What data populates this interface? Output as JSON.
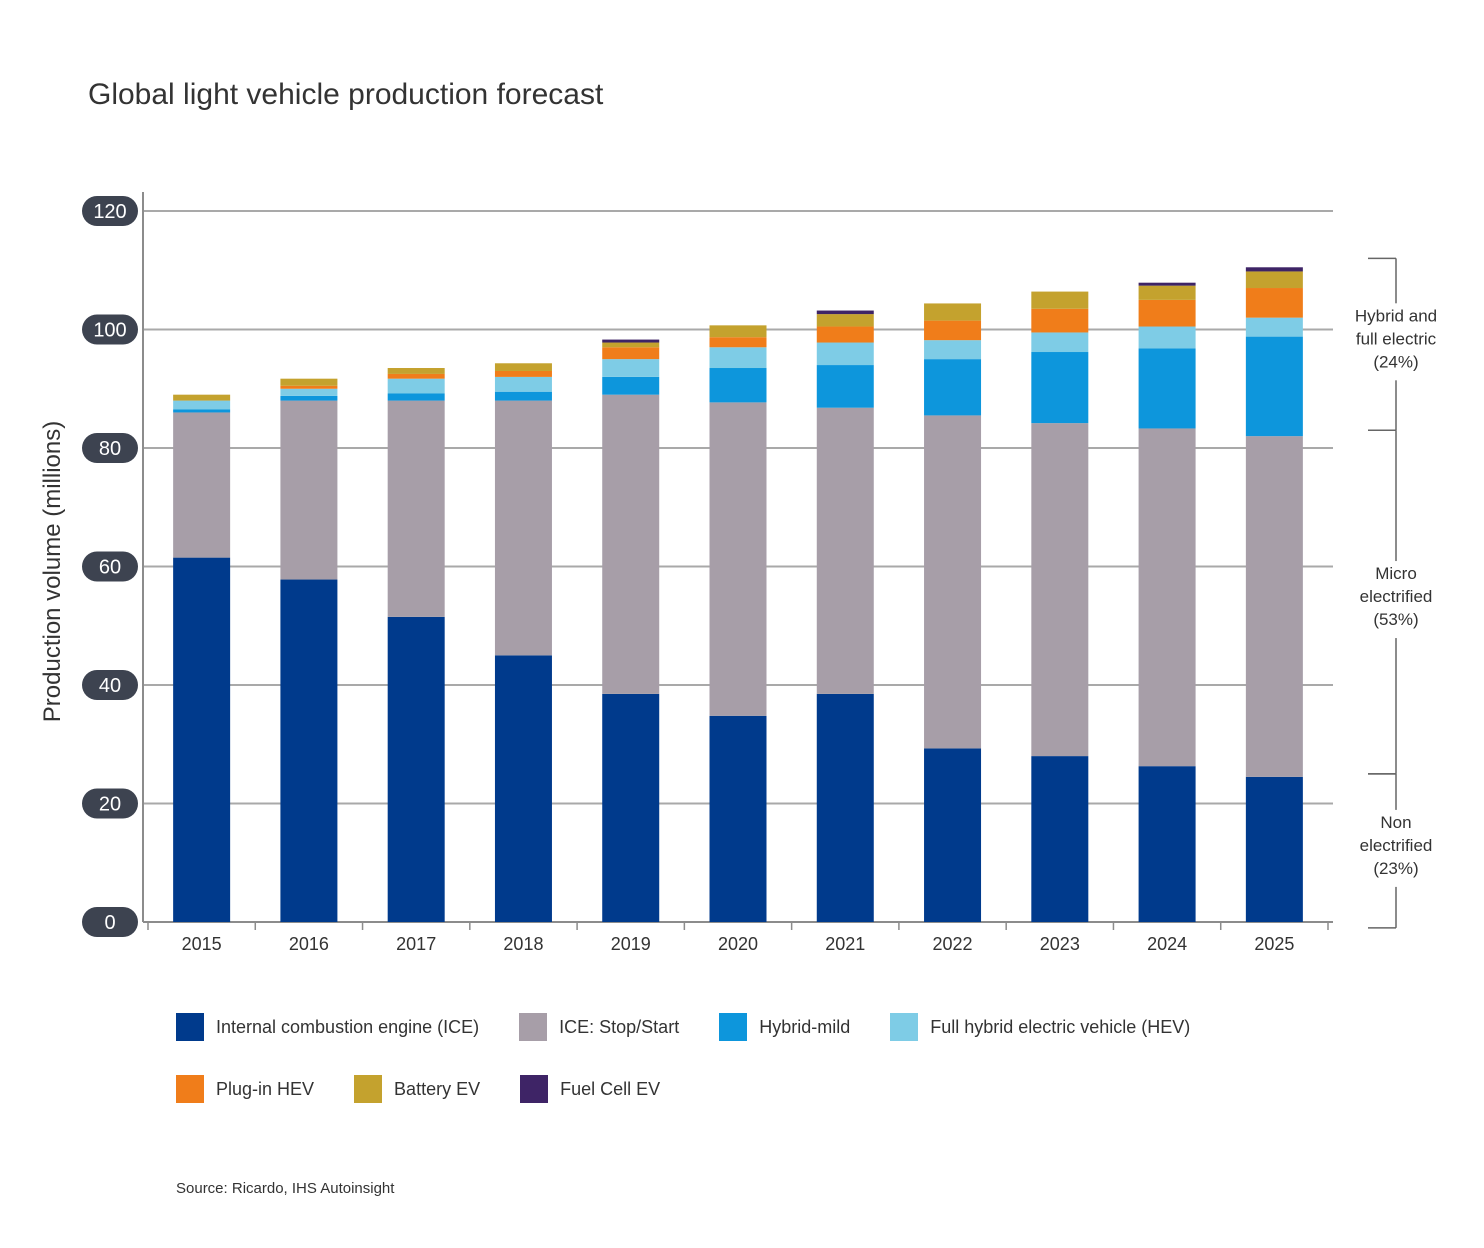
{
  "chart_data": {
    "type": "bar",
    "stacked": true,
    "title": "Global light vehicle production forecast",
    "ylabel": "Production volume (millions)",
    "xlabel": "",
    "ylim": [
      0,
      120
    ],
    "yticks": [
      "0",
      "20",
      "40",
      "60",
      "80",
      "100",
      "120"
    ],
    "grid": true,
    "categories": [
      "2015",
      "2016",
      "2017",
      "2018",
      "2019",
      "2020",
      "2021",
      "2022",
      "2023",
      "2024",
      "2025"
    ],
    "series": [
      {
        "name": "Internal combustion engine (ICE)",
        "color": "#003A8C",
        "values": [
          61.5,
          57.8,
          51.5,
          45.0,
          38.5,
          34.8,
          38.5,
          29.3,
          28.0,
          26.3,
          24.5
        ]
      },
      {
        "name": "ICE: Stop/Start",
        "color": "#A79EA8",
        "values": [
          24.5,
          30.2,
          36.5,
          43.0,
          50.5,
          52.9,
          48.3,
          56.2,
          56.2,
          57.0,
          57.5
        ]
      },
      {
        "name": "Hybrid-mild",
        "color": "#0D96DC",
        "values": [
          0.5,
          0.8,
          1.2,
          1.5,
          3.0,
          5.8,
          7.2,
          9.5,
          12.0,
          13.5,
          16.8
        ]
      },
      {
        "name": "Full hybrid electric vehicle (HEV)",
        "color": "#7ECCE6",
        "values": [
          1.5,
          1.2,
          2.5,
          2.5,
          3.0,
          3.5,
          3.8,
          3.2,
          3.3,
          3.7,
          3.2
        ]
      },
      {
        "name": "Plug-in HEV",
        "color": "#F07D1A",
        "values": [
          0.0,
          0.5,
          0.8,
          1.0,
          2.0,
          1.7,
          2.7,
          3.3,
          4.0,
          4.5,
          5.0
        ]
      },
      {
        "name": "Battery EV",
        "color": "#C4A22E",
        "values": [
          1.0,
          1.2,
          1.0,
          1.3,
          0.8,
          2.0,
          2.1,
          2.9,
          2.9,
          2.4,
          2.8
        ]
      },
      {
        "name": "Fuel Cell EV",
        "color": "#3E2466",
        "values": [
          0.0,
          0.0,
          0.0,
          0.0,
          0.5,
          0.0,
          0.6,
          0.0,
          0.0,
          0.5,
          0.7
        ]
      }
    ],
    "brackets": [
      {
        "label": [
          "Hybrid and",
          "full electric",
          "(24%)"
        ],
        "from": 83,
        "to": 112
      },
      {
        "label": [
          "Micro",
          "electrified",
          "(53%)"
        ],
        "from": 25,
        "to": 83
      },
      {
        "label": [
          "Non",
          "electrified",
          "(23%)"
        ],
        "from": -1,
        "to": 25
      }
    ],
    "source": "Source: Ricardo, IHS Autoinsight"
  }
}
